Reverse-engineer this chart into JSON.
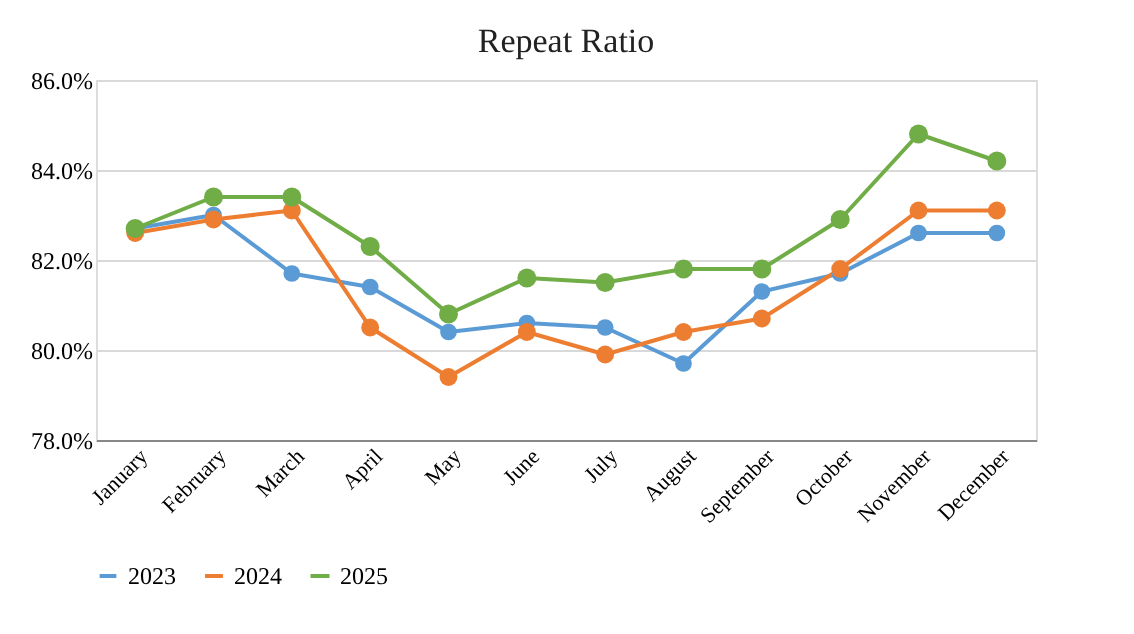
{
  "chart_data": {
    "type": "line",
    "title": "Repeat Ratio",
    "categories": [
      "January",
      "February",
      "March",
      "April",
      "May",
      "June",
      "July",
      "August",
      "September",
      "October",
      "November",
      "December"
    ],
    "series": [
      {
        "name": "2023",
        "color": "#5b9bd5",
        "values": [
          82.7,
          83.0,
          81.7,
          81.4,
          80.4,
          80.6,
          80.5,
          79.7,
          81.3,
          81.7,
          82.6,
          82.6
        ]
      },
      {
        "name": "2024",
        "color": "#ed7d31",
        "values": [
          82.6,
          82.9,
          83.1,
          80.5,
          79.4,
          80.4,
          79.9,
          80.4,
          80.7,
          81.8,
          83.1,
          83.1
        ]
      },
      {
        "name": "2025",
        "color": "#70ad47",
        "values": [
          82.7,
          83.4,
          83.4,
          82.3,
          80.8,
          81.6,
          81.5,
          81.8,
          81.8,
          82.9,
          84.8,
          84.2
        ]
      }
    ],
    "ylim": [
      78,
      86
    ],
    "yticks": [
      {
        "value": 78,
        "label": "78.0%"
      },
      {
        "value": 80,
        "label": "80.0%"
      },
      {
        "value": 82,
        "label": "82.0%"
      },
      {
        "value": 84,
        "label": "84.0%"
      },
      {
        "value": 86,
        "label": "86.0%"
      }
    ],
    "grid": "y",
    "legend": "bottom",
    "marker": "circle",
    "line_style": "solid"
  }
}
